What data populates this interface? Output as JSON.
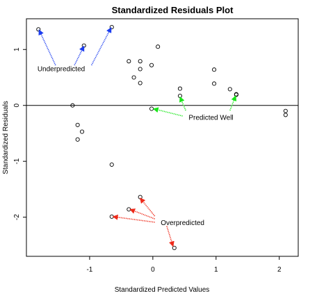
{
  "chart_data": {
    "type": "scatter",
    "title": "Standardized Residuals Plot",
    "xlabel": "Standardized Predicted Values",
    "ylabel": "Standardized Residuals",
    "xlim": [
      -2.0,
      2.3
    ],
    "ylim": [
      -2.7,
      1.55
    ],
    "xticks": [
      -1,
      0,
      1,
      2
    ],
    "xtick_labels": [
      "-1",
      "0",
      "1",
      "2"
    ],
    "yticks": [
      -2,
      -1,
      0,
      1
    ],
    "ytick_labels": [
      "-2",
      "-1",
      "0",
      "1"
    ],
    "grid": false,
    "reference_line_y": 0,
    "points": [
      {
        "x": -1.81,
        "y": 1.36
      },
      {
        "x": -1.09,
        "y": 1.07
      },
      {
        "x": -0.65,
        "y": 1.4
      },
      {
        "x": 0.08,
        "y": 1.05
      },
      {
        "x": -0.38,
        "y": 0.79
      },
      {
        "x": -0.2,
        "y": 0.79
      },
      {
        "x": -0.2,
        "y": 0.65
      },
      {
        "x": -0.02,
        "y": 0.72
      },
      {
        "x": -0.3,
        "y": 0.5
      },
      {
        "x": -0.2,
        "y": 0.4
      },
      {
        "x": 0.43,
        "y": 0.3
      },
      {
        "x": 0.43,
        "y": 0.17
      },
      {
        "x": 0.97,
        "y": 0.64
      },
      {
        "x": 0.97,
        "y": 0.39
      },
      {
        "x": 1.22,
        "y": 0.29
      },
      {
        "x": 1.32,
        "y": 0.2
      },
      {
        "x": 1.32,
        "y": 0.19
      },
      {
        "x": -0.02,
        "y": -0.06
      },
      {
        "x": 2.1,
        "y": -0.1
      },
      {
        "x": 2.1,
        "y": -0.17
      },
      {
        "x": -1.27,
        "y": 0.0
      },
      {
        "x": -1.19,
        "y": -0.35
      },
      {
        "x": -1.12,
        "y": -0.47
      },
      {
        "x": -1.19,
        "y": -0.61
      },
      {
        "x": -0.65,
        "y": -1.06
      },
      {
        "x": -0.2,
        "y": -1.64
      },
      {
        "x": -0.38,
        "y": -1.86
      },
      {
        "x": -0.65,
        "y": -1.99
      },
      {
        "x": 0.34,
        "y": -2.55
      }
    ],
    "annotations": [
      {
        "label": "Underpredicted",
        "color": "#1c3df0",
        "anchor": {
          "x": -1.45,
          "y": 0.66
        },
        "arrows": [
          {
            "from": {
              "x": -1.54,
              "y": 0.72
            },
            "to": {
              "x": -1.8,
              "y": 1.35
            }
          },
          {
            "from": {
              "x": -1.24,
              "y": 0.72
            },
            "to": {
              "x": -1.09,
              "y": 1.06
            }
          },
          {
            "from": {
              "x": -0.97,
              "y": 0.72
            },
            "to": {
              "x": -0.66,
              "y": 1.39
            }
          }
        ]
      },
      {
        "label": "Predicted Well",
        "color": "#19e619",
        "anchor": {
          "x": 0.92,
          "y": -0.21
        },
        "arrows": [
          {
            "from": {
              "x": 0.47,
              "y": -0.19
            },
            "to": {
              "x": 0.01,
              "y": -0.06
            }
          },
          {
            "from": {
              "x": 0.52,
              "y": -0.09
            },
            "to": {
              "x": 0.43,
              "y": 0.15
            }
          },
          {
            "from": {
              "x": 1.22,
              "y": -0.09
            },
            "to": {
              "x": 1.31,
              "y": 0.17
            }
          }
        ]
      },
      {
        "label": "Overpredicted",
        "color": "#ee2a1a",
        "anchor": {
          "x": 0.47,
          "y": -2.09
        },
        "arrows": [
          {
            "from": {
              "x": 0.03,
              "y": -1.98
            },
            "to": {
              "x": -0.2,
              "y": -1.66
            }
          },
          {
            "from": {
              "x": 0.03,
              "y": -2.03
            },
            "to": {
              "x": -0.36,
              "y": -1.86
            }
          },
          {
            "from": {
              "x": 0.03,
              "y": -2.09
            },
            "to": {
              "x": -0.63,
              "y": -1.99
            }
          },
          {
            "from": {
              "x": 0.22,
              "y": -2.16
            },
            "to": {
              "x": 0.32,
              "y": -2.52
            }
          }
        ]
      }
    ]
  }
}
